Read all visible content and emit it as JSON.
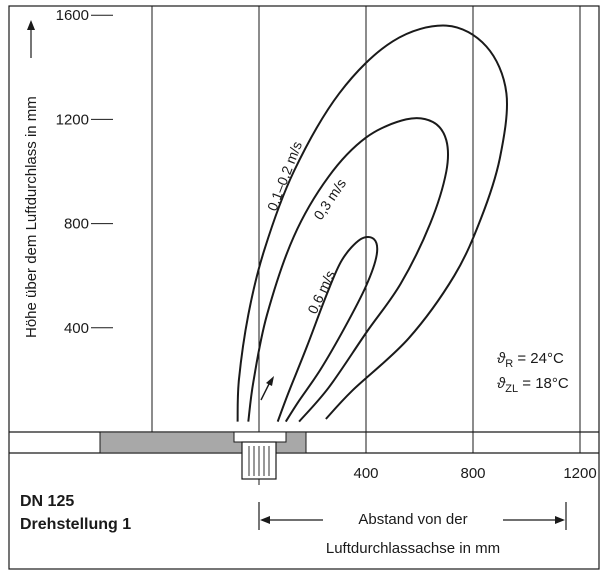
{
  "chart_data": {
    "type": "line",
    "title": "",
    "x_axis": {
      "label_line1": "Abstand von der",
      "label_line2": "Luftdurchlassachse in mm",
      "range": [
        -1000,
        1300
      ],
      "ticks": [
        {
          "value": 400,
          "label": "400"
        },
        {
          "value": 800,
          "label": "800"
        },
        {
          "value": 1200,
          "label": "1200"
        }
      ]
    },
    "y_axis": {
      "label": "Höhe über dem Luftdurchlass in mm",
      "range": [
        -200,
        1600
      ],
      "ticks": [
        {
          "value": 400,
          "label": "400"
        },
        {
          "value": 800,
          "label": "800"
        },
        {
          "value": 1200,
          "label": "1200"
        },
        {
          "value": 1600,
          "label": "1600"
        }
      ]
    },
    "grid": true,
    "series": [
      {
        "name": "0,1–0,2 m/s",
        "points": [
          [
            -80,
            40
          ],
          [
            -75,
            200
          ],
          [
            -40,
            450
          ],
          [
            20,
            700
          ],
          [
            130,
            1000
          ],
          [
            300,
            1300
          ],
          [
            500,
            1500
          ],
          [
            700,
            1560
          ],
          [
            850,
            1480
          ],
          [
            925,
            1300
          ],
          [
            900,
            1050
          ],
          [
            830,
            820
          ],
          [
            730,
            600
          ],
          [
            560,
            360
          ],
          [
            350,
            160
          ],
          [
            250,
            50
          ]
        ]
      },
      {
        "name": "0,3 m/s",
        "points": [
          [
            -40,
            40
          ],
          [
            -20,
            200
          ],
          [
            30,
            450
          ],
          [
            130,
            750
          ],
          [
            260,
            980
          ],
          [
            400,
            1130
          ],
          [
            550,
            1200
          ],
          [
            650,
            1190
          ],
          [
            700,
            1120
          ],
          [
            700,
            1000
          ],
          [
            640,
            800
          ],
          [
            530,
            570
          ],
          [
            400,
            380
          ],
          [
            260,
            170
          ],
          [
            150,
            40
          ]
        ]
      },
      {
        "name": "0,6 m/s",
        "points": [
          [
            70,
            40
          ],
          [
            110,
            150
          ],
          [
            180,
            330
          ],
          [
            250,
            520
          ],
          [
            310,
            660
          ],
          [
            380,
            740
          ],
          [
            430,
            740
          ],
          [
            440,
            680
          ],
          [
            400,
            560
          ],
          [
            320,
            400
          ],
          [
            230,
            240
          ],
          [
            150,
            120
          ],
          [
            100,
            40
          ]
        ]
      }
    ],
    "annotations": [
      {
        "text_var": "ϑ",
        "sub": "R",
        "text_rest": " = 24°C"
      },
      {
        "text_var": "ϑ",
        "sub": "ZL",
        "text_rest": " = 18°C"
      }
    ],
    "device": {
      "line1": "DN 125",
      "line2": "Drehstellung 1"
    }
  }
}
